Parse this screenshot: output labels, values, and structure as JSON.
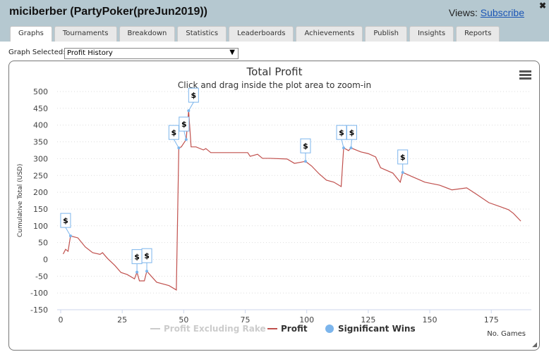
{
  "header": {
    "title": "miciberber (PartyPoker(preJun2019))",
    "views_label": "Views:",
    "subscribe_link": "Subscribe",
    "close_icon": "x-icon"
  },
  "tabs": [
    {
      "label": "Graphs",
      "active": true
    },
    {
      "label": "Tournaments"
    },
    {
      "label": "Breakdown"
    },
    {
      "label": "Statistics"
    },
    {
      "label": "Leaderboards"
    },
    {
      "label": "Achievements"
    },
    {
      "label": "Publish"
    },
    {
      "label": "Insights"
    },
    {
      "label": "Reports"
    }
  ],
  "graph_select": {
    "label": "Graph Selected:",
    "value": "Profit History"
  },
  "chart_data": {
    "type": "line",
    "title": "Total Profit",
    "subtitle": "Click and drag inside the plot area to zoom-in",
    "xlabel": "No. Games",
    "ylabel": "Cumulative Total (USD)",
    "xlim": [
      0,
      188
    ],
    "ylim": [
      -150,
      500
    ],
    "xticks": [
      0,
      25,
      50,
      75,
      100,
      125,
      150,
      175
    ],
    "yticks": [
      -150,
      -100,
      -50,
      0,
      50,
      100,
      150,
      200,
      250,
      300,
      350,
      400,
      450,
      500
    ],
    "grid": true,
    "legend_placement": "bottom",
    "legend": [
      {
        "name": "Profit Excluding Rake",
        "color": "#cccccc",
        "hidden": true
      },
      {
        "name": "Profit",
        "color": "#c0504d"
      },
      {
        "name": "Significant Wins",
        "color": "#7cb5ec"
      }
    ],
    "series": [
      {
        "name": "Profit",
        "color": "#c0504d",
        "points": [
          [
            1,
            16
          ],
          [
            2,
            30
          ],
          [
            3,
            24
          ],
          [
            4,
            70
          ],
          [
            7,
            64
          ],
          [
            10,
            37
          ],
          [
            13,
            20
          ],
          [
            16,
            15
          ],
          [
            17,
            20
          ],
          [
            19,
            3
          ],
          [
            22,
            -18
          ],
          [
            24.5,
            -39
          ],
          [
            27,
            -45
          ],
          [
            30,
            -58
          ],
          [
            31,
            -38
          ],
          [
            32,
            -64
          ],
          [
            34,
            -64
          ],
          [
            35,
            -35
          ],
          [
            39,
            -68
          ],
          [
            44,
            -78
          ],
          [
            47,
            -91
          ],
          [
            48,
            332
          ],
          [
            49,
            335
          ],
          [
            51,
            357
          ],
          [
            52,
            443
          ],
          [
            53,
            335
          ],
          [
            55,
            335
          ],
          [
            58,
            326
          ],
          [
            59,
            330
          ],
          [
            61,
            318
          ],
          [
            76,
            318
          ],
          [
            77,
            307
          ],
          [
            80,
            313
          ],
          [
            82,
            301
          ],
          [
            85,
            301
          ],
          [
            92,
            299
          ],
          [
            95,
            286
          ],
          [
            99.5,
            292
          ],
          [
            102,
            278
          ],
          [
            105,
            255
          ],
          [
            108,
            236
          ],
          [
            111,
            230
          ],
          [
            114,
            217
          ],
          [
            115,
            332
          ],
          [
            117,
            324
          ],
          [
            118,
            332
          ],
          [
            122,
            320
          ],
          [
            125,
            315
          ],
          [
            128,
            305
          ],
          [
            130,
            273
          ],
          [
            135,
            257
          ],
          [
            138,
            230
          ],
          [
            139,
            259
          ],
          [
            143,
            246
          ],
          [
            148,
            230
          ],
          [
            154,
            221
          ],
          [
            159,
            207
          ],
          [
            165,
            213
          ],
          [
            169,
            194
          ],
          [
            174,
            169
          ],
          [
            179,
            156
          ],
          [
            182,
            148
          ],
          [
            184,
            137
          ],
          [
            187,
            114
          ]
        ]
      }
    ],
    "significant_wins": {
      "label": "$",
      "games": [
        4,
        31,
        35,
        48,
        51,
        52,
        99.5,
        115,
        118,
        139
      ]
    }
  },
  "menu_icon": "hamburger-icon"
}
